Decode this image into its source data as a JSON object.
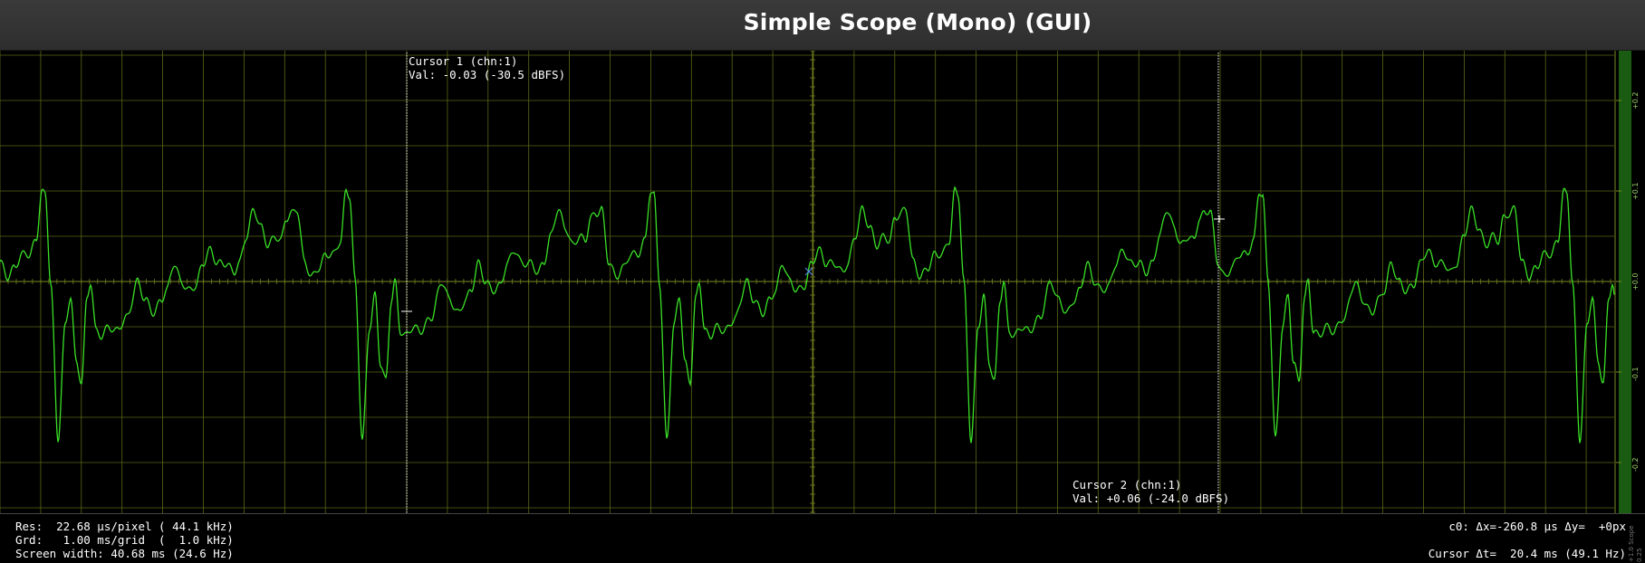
{
  "window": {
    "title": "Simple Scope (Mono) (GUI)"
  },
  "colors": {
    "background": "#000000",
    "grid": "#5c6617",
    "grid_bright": "#7d8a22",
    "trace": "#39e026",
    "cursor_line": "#ffffff",
    "level_meter": "#1a5c12"
  },
  "cursor1": {
    "label": "Cursor 1 (chn:1)",
    "value": "Val: -0.03 (-30.5 dBFS)"
  },
  "cursor2": {
    "label": "Cursor 2 (chn:1)",
    "value": "Val: +0.06 (-24.0 dBFS)"
  },
  "status_left": {
    "res": "Res:  22.68 µs/pixel ( 44.1 kHz)",
    "grid": "Grd:   1.00 ms/grid  (  1.0 kHz)",
    "width": "Screen width: 40.68 ms (24.6 Hz)"
  },
  "status_right": {
    "delta": "c0: Δx=-260.8 µs Δy=  +0px",
    "cursor_dt": "Cursor Δt=  20.4 ms (49.1 Hz)"
  },
  "y_axis": {
    "labels": [
      "+0.2",
      "+0.1",
      "+0.0",
      "-0.1",
      "-0.2"
    ],
    "values": [
      0.2,
      0.1,
      0.0,
      -0.1,
      -0.2
    ]
  },
  "corner_labels": {
    "top": "+1.0 Scope",
    "bottom": "0.25"
  }
}
